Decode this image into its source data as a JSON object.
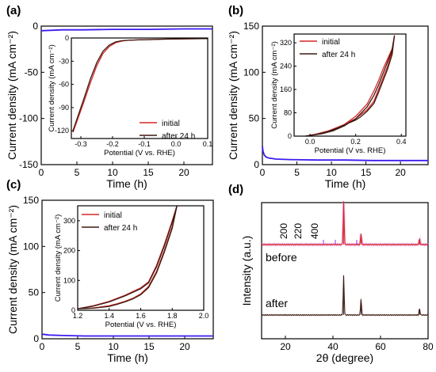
{
  "colors": {
    "red": "#d62728",
    "dark": "#3b1a10",
    "blue": "#3a1cf0",
    "purple": "#9b30d8",
    "magenta": "#e070e0"
  },
  "chart_data": [
    {
      "type": "line",
      "panel": "(a)",
      "xlabel": "Time (h)",
      "ylabel": "Current density (mA cm⁻²)",
      "xlim": [
        0,
        24
      ],
      "ylim": [
        -150,
        0
      ],
      "xticks": [
        "0",
        "5",
        "10",
        "15",
        "20"
      ],
      "yticks": [
        "0",
        "-50",
        "-100",
        "-150"
      ],
      "series": [
        {
          "color": "#3a1cf0",
          "x": [
            0,
            3,
            6,
            10,
            15,
            20,
            24
          ],
          "y": [
            -5,
            -4,
            -4,
            -3.5,
            -3.5,
            -3,
            -3
          ]
        }
      ],
      "inset": {
        "xlabel": "Potential (V vs. RHE)",
        "ylabel": "Current density (mA cm⁻²)",
        "xlim": [
          -0.33,
          0.1
        ],
        "ylim": [
          -130,
          0
        ],
        "xticks": [
          "-0.3",
          "-0.2",
          "-0.1",
          "0.0",
          "0.1"
        ],
        "yticks": [
          "0",
          "-30",
          "-60",
          "-90",
          "-120"
        ],
        "series": [
          {
            "name": "initial",
            "color": "#d62728",
            "x": [
              -0.325,
              -0.31,
              -0.29,
              -0.27,
              -0.25,
              -0.23,
              -0.21,
              -0.19,
              -0.17,
              -0.15,
              -0.12,
              -0.08,
              -0.04,
              0.0,
              0.05,
              0.1
            ],
            "y": [
              -122,
              -105,
              -82,
              -58,
              -36,
              -20,
              -11,
              -6,
              -4,
              -3,
              -2.5,
              -2,
              -1.5,
              -1.2,
              -1,
              -0.8
            ]
          },
          {
            "name": "after 24 h",
            "color": "#3b1a10",
            "x": [
              -0.325,
              -0.31,
              -0.29,
              -0.27,
              -0.25,
              -0.23,
              -0.21,
              -0.19,
              -0.17,
              -0.15,
              -0.12,
              -0.08,
              -0.04,
              0.0,
              0.05,
              0.1
            ],
            "y": [
              -120,
              -102,
              -78,
              -53,
              -32,
              -17,
              -9,
              -5,
              -3.5,
              -3,
              -2.5,
              -2,
              -1.5,
              -1.2,
              -1,
              -0.8
            ]
          }
        ]
      }
    },
    {
      "type": "line",
      "panel": "(b)",
      "xlabel": "Time (h)",
      "ylabel": "Current density (mA cm⁻²)",
      "xlim": [
        0,
        24
      ],
      "ylim": [
        0,
        150
      ],
      "xticks": [
        "0",
        "5",
        "10",
        "15",
        "20"
      ],
      "yticks": [
        "0",
        "50",
        "100",
        "150"
      ],
      "series": [
        {
          "color": "#3a1cf0",
          "x": [
            0,
            0.1,
            0.3,
            0.6,
            1,
            2,
            4,
            8,
            12,
            16,
            20,
            24
          ],
          "y": [
            20,
            14,
            10,
            8,
            7,
            6,
            5.5,
            5,
            5,
            4.5,
            4.5,
            4.5
          ]
        }
      ],
      "inset": {
        "xlabel": "Potential (V vs. RHE)",
        "ylabel": "Current density (mA cm⁻²)",
        "xlim": [
          -0.07,
          0.42
        ],
        "ylim": [
          0,
          350
        ],
        "xticks": [
          "0.0",
          "0.2",
          "0.4"
        ],
        "yticks": [
          "0",
          "80",
          "160",
          "240",
          "320"
        ],
        "series": [
          {
            "name": "initial",
            "color": "#d62728",
            "x": [
              -0.02,
              0.05,
              0.1,
              0.15,
              0.2,
              0.25,
              0.28,
              0.3,
              0.32,
              0.34,
              0.36,
              0.37,
              0.36,
              0.34,
              0.32,
              0.3,
              0.28,
              0.25,
              0.22,
              0.2,
              0.17,
              0.15,
              0.12,
              0.08,
              0.03,
              -0.02
            ],
            "y": [
              0,
              10,
              22,
              40,
              68,
              110,
              155,
              190,
              230,
              265,
              300,
              345,
              290,
              240,
              200,
              160,
              120,
              90,
              72,
              60,
              48,
              40,
              30,
              18,
              8,
              0
            ]
          },
          {
            "name": "after 24 h",
            "color": "#3b1a10",
            "x": [
              -0.02,
              0.05,
              0.1,
              0.15,
              0.2,
              0.25,
              0.28,
              0.3,
              0.32,
              0.34,
              0.36,
              0.37,
              0.36,
              0.34,
              0.32,
              0.3,
              0.28,
              0.25,
              0.22,
              0.2,
              0.17,
              0.15,
              0.12,
              0.08,
              0.03,
              -0.02
            ],
            "y": [
              0,
              8,
              18,
              35,
              60,
              100,
              140,
              175,
              215,
              255,
              295,
              345,
              280,
              230,
              190,
              150,
              112,
              85,
              65,
              55,
              45,
              38,
              28,
              16,
              6,
              0
            ]
          }
        ]
      }
    },
    {
      "type": "line",
      "panel": "(c)",
      "xlabel": "Time (h)",
      "ylabel": "Current density (mA cm⁻²)",
      "xlim": [
        0,
        24
      ],
      "ylim": [
        0,
        150
      ],
      "xticks": [
        "0",
        "5",
        "10",
        "15",
        "20"
      ],
      "yticks": [
        "0",
        "50",
        "100",
        "150"
      ],
      "series": [
        {
          "color": "#3a1cf0",
          "x": [
            0,
            1,
            3,
            6,
            10,
            15,
            20,
            24
          ],
          "y": [
            5,
            4,
            3.5,
            3,
            3,
            3,
            3,
            3
          ]
        }
      ],
      "inset": {
        "xlabel": "Potential (V vs. RHE)",
        "ylabel": "Current density (mA cm⁻²)",
        "xlim": [
          1.2,
          2.0
        ],
        "ylim": [
          0,
          350
        ],
        "xticks": [
          "1.2",
          "1.4",
          "1.6",
          "1.8",
          "2.0"
        ],
        "yticks": [
          "0",
          "100",
          "200",
          "300"
        ],
        "series": [
          {
            "name": "initial",
            "color": "#d62728",
            "x": [
              1.2,
              1.3,
              1.4,
              1.5,
              1.6,
              1.65,
              1.7,
              1.75,
              1.8,
              1.83,
              1.8,
              1.75,
              1.7,
              1.65,
              1.6,
              1.55,
              1.5,
              1.45,
              1.4,
              1.3,
              1.2
            ],
            "y": [
              5,
              15,
              30,
              50,
              75,
              95,
              150,
              220,
              300,
              350,
              280,
              200,
              130,
              80,
              55,
              40,
              30,
              22,
              15,
              8,
              5
            ]
          },
          {
            "name": "after 24 h",
            "color": "#3b1a10",
            "x": [
              1.2,
              1.3,
              1.4,
              1.5,
              1.6,
              1.65,
              1.7,
              1.75,
              1.8,
              1.83,
              1.8,
              1.75,
              1.7,
              1.65,
              1.6,
              1.55,
              1.5,
              1.45,
              1.4,
              1.3,
              1.2
            ],
            "y": [
              5,
              14,
              28,
              48,
              72,
              92,
              145,
              215,
              295,
              350,
              275,
              195,
              125,
              76,
              52,
              38,
              28,
              20,
              13,
              7,
              5
            ]
          }
        ]
      }
    },
    {
      "type": "line",
      "panel": "(d)",
      "xlabel": "2θ (degree)",
      "ylabel": "Intensity (a.u.)",
      "xlim": [
        10,
        80
      ],
      "xticks": [
        "20",
        "40",
        "60",
        "80"
      ],
      "series": [
        {
          "name": "before",
          "color": "#d62728",
          "peaks": [
            {
              "x": 44.5,
              "h": 1.0
            },
            {
              "x": 51.8,
              "h": 0.26
            },
            {
              "x": 76.4,
              "h": 0.13
            }
          ]
        },
        {
          "name": "after",
          "color": "#3b1a10",
          "peaks": [
            {
              "x": 44.5,
              "h": 0.92
            },
            {
              "x": 51.8,
              "h": 0.38
            },
            {
              "x": 76.4,
              "h": 0.15
            }
          ]
        }
      ],
      "annotations": [
        "200",
        "220",
        "400"
      ],
      "labels": [
        "before",
        "after"
      ]
    }
  ],
  "labels": {
    "a": "(a)",
    "b": "(b)",
    "c": "(c)",
    "d": "(d)"
  }
}
